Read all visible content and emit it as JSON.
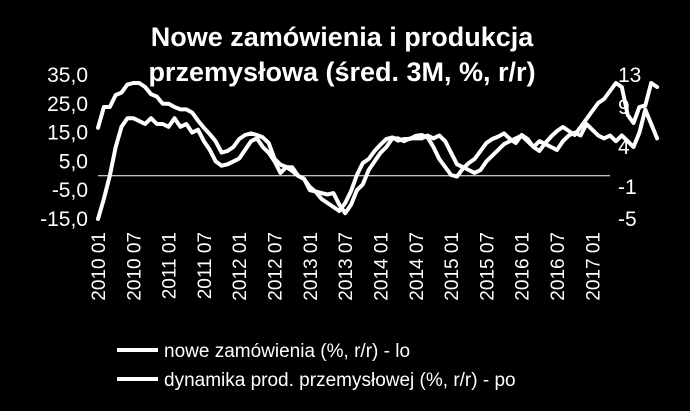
{
  "chart_data": {
    "type": "line",
    "title_lines": [
      "Nowe zamówienia i produkcja",
      "przemysłowa (śred. 3M, %, r/r)"
    ],
    "x_start": "2010-01",
    "x_end": "2017-04",
    "x_tick_labels": [
      "2010 01",
      "2010 07",
      "2011 01",
      "2011 07",
      "2012 01",
      "2012 07",
      "2013 01",
      "2013 07",
      "2014 01",
      "2014 07",
      "2015 01",
      "2015 07",
      "2016 01",
      "2016 07",
      "2017 01"
    ],
    "y_left": {
      "ticks": [
        "35,0",
        "25,0",
        "15,0",
        "5,0",
        "-5,0",
        "-15,0"
      ],
      "min": -15,
      "max": 35
    },
    "y_right": {
      "ticks": [
        "13",
        "9",
        "4",
        "-1",
        "-5"
      ],
      "min": -5,
      "max": 13
    },
    "zero_line": true,
    "legend_position": "bottom",
    "series": [
      {
        "name": "nowe zamówienia (%, r/r) - lo",
        "axis": "left",
        "color": "#ffffff",
        "values": [
          -15.0,
          -8.0,
          0.0,
          10.0,
          17.0,
          20.0,
          20.0,
          19.0,
          18.0,
          20.0,
          18.0,
          18.0,
          17.0,
          20.0,
          17.0,
          18.0,
          15.0,
          16.0,
          12.0,
          9.0,
          5.0,
          3.5,
          4.0,
          5.0,
          6.0,
          9.0,
          12.0,
          13.0,
          10.0,
          8.0,
          5.0,
          1.0,
          3.0,
          3.0,
          0.0,
          -1.0,
          -5.0,
          -5.5,
          -6.0,
          -6.5,
          -6.0,
          -10.0,
          -13.0,
          -10.0,
          -5.0,
          -3.0,
          2.0,
          5.0,
          8.0,
          10.0,
          13.0,
          13.0,
          12.0,
          13.0,
          13.0,
          13.0,
          14.0,
          13.0,
          14.0,
          12.0,
          8.0,
          4.0,
          3.0,
          2.0,
          1.0,
          2.0,
          5.0,
          7.0,
          9.0,
          11.0,
          12.0,
          13.0,
          14.0,
          12.0,
          10.0,
          12.0,
          11.0,
          10.0,
          9.0,
          12.0,
          14.0,
          15.0,
          14.0,
          18.0,
          16.0,
          14.0,
          13.0,
          14.0,
          12.0,
          14.0,
          12.0,
          10.0,
          15.0,
          23.0,
          18.0,
          13.0
        ]
      },
      {
        "name": "dynamika prod. przemysłowej (%, r/r) - po",
        "axis": "right",
        "color": "#ffffff",
        "values": [
          6.4,
          9.0,
          9.0,
          10.5,
          10.8,
          11.8,
          12.0,
          12.0,
          11.5,
          10.6,
          10.3,
          9.4,
          9.4,
          9.0,
          8.7,
          8.7,
          8.3,
          7.3,
          6.4,
          5.6,
          4.7,
          3.3,
          3.5,
          4.0,
          5.0,
          5.5,
          5.7,
          5.5,
          5.2,
          4.5,
          2.5,
          1.8,
          1.5,
          1.0,
          0.4,
          0.0,
          -1.0,
          -1.6,
          -2.5,
          -3.0,
          -3.5,
          -4.0,
          -3.0,
          -1.5,
          0.5,
          2.0,
          2.5,
          3.5,
          4.3,
          5.0,
          5.2,
          4.8,
          5.0,
          5.0,
          5.4,
          5.5,
          5.2,
          4.0,
          2.5,
          1.5,
          0.5,
          0.3,
          1.3,
          2.0,
          2.5,
          3.5,
          4.5,
          5.0,
          5.3,
          5.7,
          5.0,
          4.5,
          5.5,
          5.0,
          4.0,
          3.5,
          4.5,
          5.3,
          6.0,
          6.5,
          6.0,
          5.5,
          6.5,
          7.5,
          8.5,
          9.5,
          10.0,
          11.0,
          12.0,
          11.5,
          8.0,
          7.0,
          9.0,
          9.2,
          12.0,
          11.5
        ]
      }
    ]
  }
}
